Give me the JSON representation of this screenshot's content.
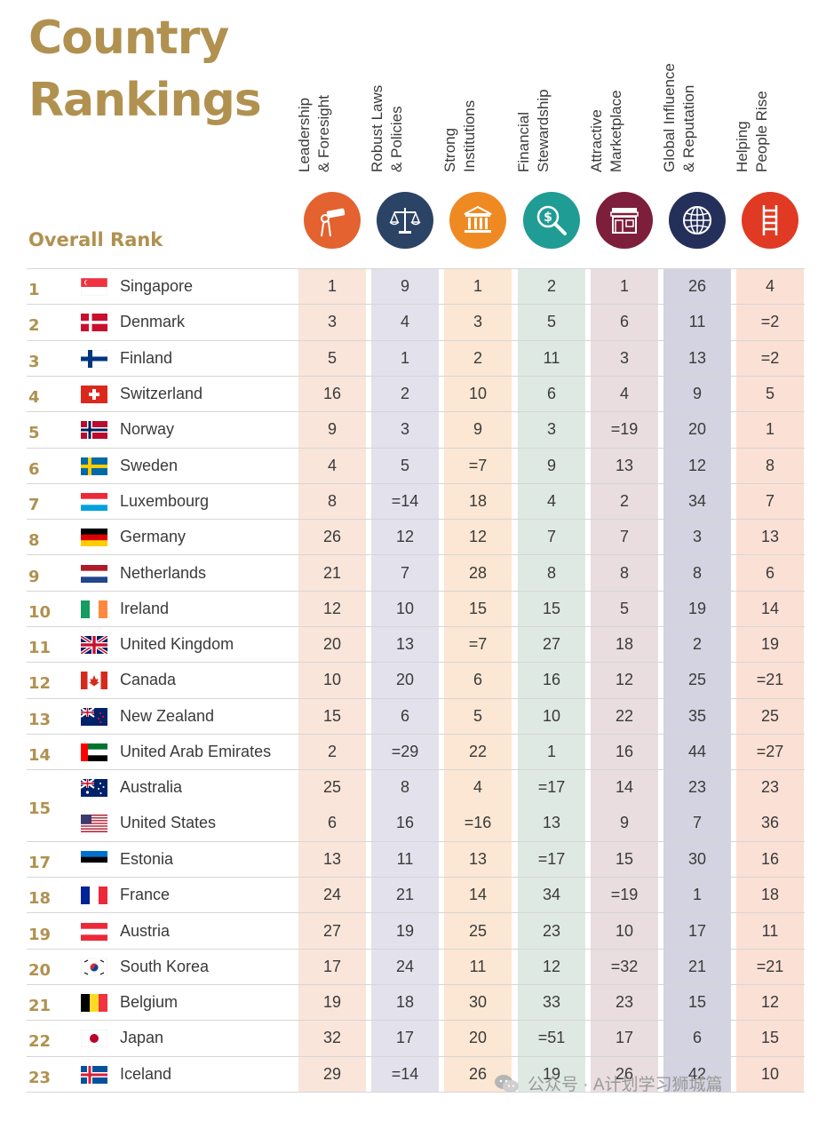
{
  "title_line1": "Country",
  "title_line2": "Rankings",
  "overall_rank_label": "Overall Rank",
  "columns": [
    {
      "label1": "Leadership",
      "label2": "& Foresight",
      "icon": "telescope-icon",
      "icon_color": "#e3622f",
      "bg": "#f9e5da"
    },
    {
      "label1": "Robust Laws",
      "label2": "& Policies",
      "icon": "scales-icon",
      "icon_color": "#2b4365",
      "bg": "#e2e1ec"
    },
    {
      "label1": "Strong",
      "label2": "Institutions",
      "icon": "building-icon",
      "icon_color": "#ef8a23",
      "bg": "#fbe7d3"
    },
    {
      "label1": "Financial",
      "label2": "Stewardship",
      "icon": "money-magnifier-icon",
      "icon_color": "#1f9c93",
      "bg": "#dfe9e4"
    },
    {
      "label1": "Attractive",
      "label2": "Marketplace",
      "icon": "storefront-icon",
      "icon_color": "#7d1f3b",
      "bg": "#e9dde0"
    },
    {
      "label1": "Global Influence",
      "label2": "& Reputation",
      "icon": "globe-icon",
      "icon_color": "#25305a",
      "bg": "#d4d3e1"
    },
    {
      "label1": "Helping",
      "label2": "People Rise",
      "icon": "ladder-icon",
      "icon_color": "#e03a24",
      "bg": "#fbe0d5"
    }
  ],
  "rows": [
    {
      "rank": "1",
      "country": "Singapore",
      "flag": "singapore",
      "values": [
        "1",
        "9",
        "1",
        "2",
        "1",
        "26",
        "4"
      ]
    },
    {
      "rank": "2",
      "country": "Denmark",
      "flag": "denmark",
      "values": [
        "3",
        "4",
        "3",
        "5",
        "6",
        "11",
        "=2"
      ]
    },
    {
      "rank": "3",
      "country": "Finland",
      "flag": "finland",
      "values": [
        "5",
        "1",
        "2",
        "11",
        "3",
        "13",
        "=2"
      ]
    },
    {
      "rank": "4",
      "country": "Switzerland",
      "flag": "switzerland",
      "values": [
        "16",
        "2",
        "10",
        "6",
        "4",
        "9",
        "5"
      ]
    },
    {
      "rank": "5",
      "country": "Norway",
      "flag": "norway",
      "values": [
        "9",
        "3",
        "9",
        "3",
        "=19",
        "20",
        "1"
      ]
    },
    {
      "rank": "6",
      "country": "Sweden",
      "flag": "sweden",
      "values": [
        "4",
        "5",
        "=7",
        "9",
        "13",
        "12",
        "8"
      ]
    },
    {
      "rank": "7",
      "country": "Luxembourg",
      "flag": "luxembourg",
      "values": [
        "8",
        "=14",
        "18",
        "4",
        "2",
        "34",
        "7"
      ]
    },
    {
      "rank": "8",
      "country": "Germany",
      "flag": "germany",
      "values": [
        "26",
        "12",
        "12",
        "7",
        "7",
        "3",
        "13"
      ]
    },
    {
      "rank": "9",
      "country": "Netherlands",
      "flag": "netherlands",
      "values": [
        "21",
        "7",
        "28",
        "8",
        "8",
        "8",
        "6"
      ]
    },
    {
      "rank": "10",
      "country": "Ireland",
      "flag": "ireland",
      "values": [
        "12",
        "10",
        "15",
        "15",
        "5",
        "19",
        "14"
      ]
    },
    {
      "rank": "11",
      "country": "United Kingdom",
      "flag": "uk",
      "values": [
        "20",
        "13",
        "=7",
        "27",
        "18",
        "2",
        "19"
      ]
    },
    {
      "rank": "12",
      "country": "Canada",
      "flag": "canada",
      "values": [
        "10",
        "20",
        "6",
        "16",
        "12",
        "25",
        "=21"
      ]
    },
    {
      "rank": "13",
      "country": "New Zealand",
      "flag": "newzealand",
      "values": [
        "15",
        "6",
        "5",
        "10",
        "22",
        "35",
        "25"
      ]
    },
    {
      "rank": "14",
      "country": "United Arab Emirates",
      "flag": "uae",
      "values": [
        "2",
        "=29",
        "22",
        "1",
        "16",
        "44",
        "=27"
      ]
    },
    {
      "rank": "15",
      "country": "Australia",
      "flag": "australia",
      "values": [
        "25",
        "8",
        "4",
        "=17",
        "14",
        "23",
        "23"
      ]
    },
    {
      "rank": "",
      "country": "United States",
      "flag": "usa",
      "values": [
        "6",
        "16",
        "=16",
        "13",
        "9",
        "7",
        "36"
      ]
    },
    {
      "rank": "17",
      "country": "Estonia",
      "flag": "estonia",
      "values": [
        "13",
        "11",
        "13",
        "=17",
        "15",
        "30",
        "16"
      ]
    },
    {
      "rank": "18",
      "country": "France",
      "flag": "france",
      "values": [
        "24",
        "21",
        "14",
        "34",
        "=19",
        "1",
        "18"
      ]
    },
    {
      "rank": "19",
      "country": "Austria",
      "flag": "austria",
      "values": [
        "27",
        "19",
        "25",
        "23",
        "10",
        "17",
        "11"
      ]
    },
    {
      "rank": "20",
      "country": "South Korea",
      "flag": "southkorea",
      "values": [
        "17",
        "24",
        "11",
        "12",
        "=32",
        "21",
        "=21"
      ]
    },
    {
      "rank": "21",
      "country": "Belgium",
      "flag": "belgium",
      "values": [
        "19",
        "18",
        "30",
        "33",
        "23",
        "15",
        "12"
      ]
    },
    {
      "rank": "22",
      "country": "Japan",
      "flag": "japan",
      "values": [
        "32",
        "17",
        "20",
        "=51",
        "17",
        "6",
        "15"
      ]
    },
    {
      "rank": "23",
      "country": "Iceland",
      "flag": "iceland",
      "values": [
        "29",
        "=14",
        "26",
        "19",
        "26",
        "42",
        "10"
      ]
    }
  ],
  "watermark": "公众号 · A计划学习狮城篇"
}
